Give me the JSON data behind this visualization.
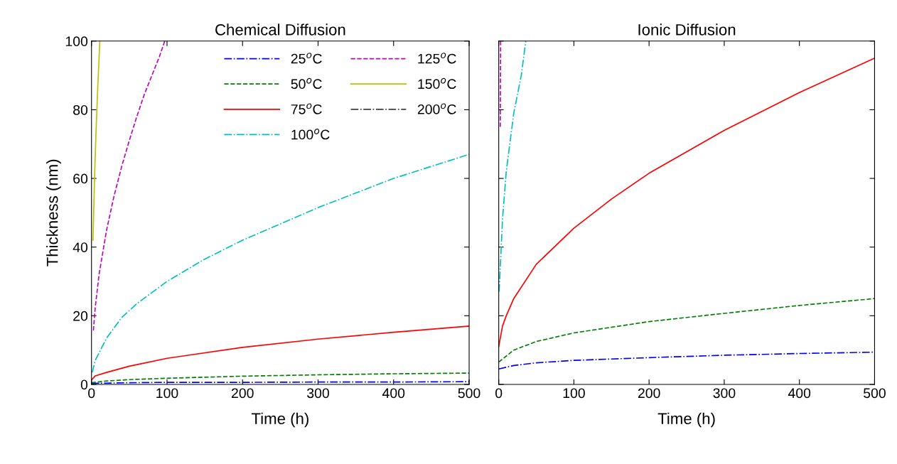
{
  "chart_data": [
    {
      "type": "line",
      "title": "Chemical Diffusion",
      "xlabel": "Time (h)",
      "ylabel": "Thickness (nm)",
      "xlim": [
        0,
        500
      ],
      "ylim": [
        0,
        100
      ],
      "xticks": [
        0,
        100,
        200,
        300,
        400,
        500
      ],
      "yticks": [
        0,
        20,
        40,
        60,
        80,
        100
      ],
      "grid": false,
      "legend": "top right",
      "marker": "none",
      "series": [
        {
          "name": "25$^{o}$C",
          "color": "#0000ff",
          "line_style": "dashdot",
          "x": [
            0,
            50,
            100,
            200,
            300,
            400,
            500
          ],
          "values": [
            0.3,
            0.5,
            0.6,
            0.6,
            0.7,
            0.7,
            0.8
          ]
        },
        {
          "name": "50$^{o}$C",
          "color": "#008000",
          "line_style": "dashed",
          "x": [
            0,
            20,
            50,
            100,
            200,
            300,
            400,
            500
          ],
          "values": [
            0.5,
            1.0,
            1.4,
            1.8,
            2.4,
            2.8,
            3.1,
            3.3
          ]
        },
        {
          "name": "75$^{o}$C",
          "color": "#ff0000",
          "line_style": "solid",
          "x": [
            0,
            5,
            20,
            50,
            100,
            200,
            300,
            400,
            500
          ],
          "values": [
            1.3,
            2.5,
            3.5,
            5.3,
            7.6,
            10.8,
            13.2,
            15.2,
            17.0
          ]
        },
        {
          "name": "100$^{o}$C",
          "color": "#00bfbf",
          "line_style": "dashdot",
          "x": [
            1,
            5,
            20,
            40,
            60,
            100,
            150,
            200,
            300,
            400,
            500
          ],
          "values": [
            3.5,
            7,
            13.5,
            19.5,
            23.5,
            30,
            36.5,
            42,
            51.5,
            60,
            67
          ]
        },
        {
          "name": "125$^{o}$C",
          "color": "#bf00bf",
          "line_style": "dashed",
          "x": [
            2.5,
            5,
            10,
            20,
            30,
            40,
            50,
            60,
            70,
            80,
            90,
            97
          ],
          "values": [
            15.7,
            22.5,
            32,
            45,
            55,
            63.5,
            71,
            78,
            84.5,
            90,
            95.5,
            100
          ]
        },
        {
          "name": "150$^{o}$C",
          "color": "#bfbf00",
          "line_style": "solid",
          "x": [
            2,
            4,
            6,
            8,
            10,
            11
          ],
          "values": [
            42,
            60,
            73.5,
            85,
            95,
            100
          ]
        },
        {
          "name": "200$^{o}$C",
          "color": "#404040",
          "line_style": "dashdot"
        }
      ]
    },
    {
      "type": "line",
      "title": "Ionic Diffusion",
      "xlabel": "Time (h)",
      "xlim": [
        0,
        500
      ],
      "ylim": [
        0,
        100
      ],
      "xticks": [
        0,
        100,
        200,
        300,
        400,
        500
      ],
      "yticks": [
        0,
        20,
        40,
        60,
        80,
        100
      ],
      "tick_labels": "x",
      "grid": false,
      "marker": "none",
      "series": [
        {
          "color": "#0000ff",
          "line_style": "dashdot",
          "x": [
            0,
            20,
            50,
            100,
            200,
            300,
            400,
            500
          ],
          "values": [
            4.5,
            5.5,
            6.3,
            7.0,
            7.8,
            8.5,
            9.0,
            9.4
          ]
        },
        {
          "color": "#008000",
          "line_style": "dashed",
          "x": [
            0,
            20,
            50,
            100,
            200,
            300,
            400,
            500
          ],
          "values": [
            6.5,
            10,
            12.5,
            15,
            18.3,
            20.7,
            23,
            25
          ]
        },
        {
          "color": "#ff0000",
          "line_style": "solid",
          "x": [
            0,
            5,
            10,
            20,
            50,
            100,
            150,
            200,
            300,
            400,
            500
          ],
          "values": [
            11,
            17,
            20,
            25,
            35,
            45.5,
            54,
            61.5,
            74,
            85,
            95
          ]
        },
        {
          "color": "#00bfbf",
          "line_style": "dashdot",
          "x": [
            0.5,
            5,
            10,
            20,
            30,
            36
          ],
          "values": [
            27,
            48,
            62,
            79,
            90,
            100
          ]
        },
        {
          "color": "#bf00bf",
          "line_style": "dashed",
          "x": [
            2,
            2.5
          ],
          "values": [
            75,
            100
          ]
        }
      ]
    }
  ]
}
